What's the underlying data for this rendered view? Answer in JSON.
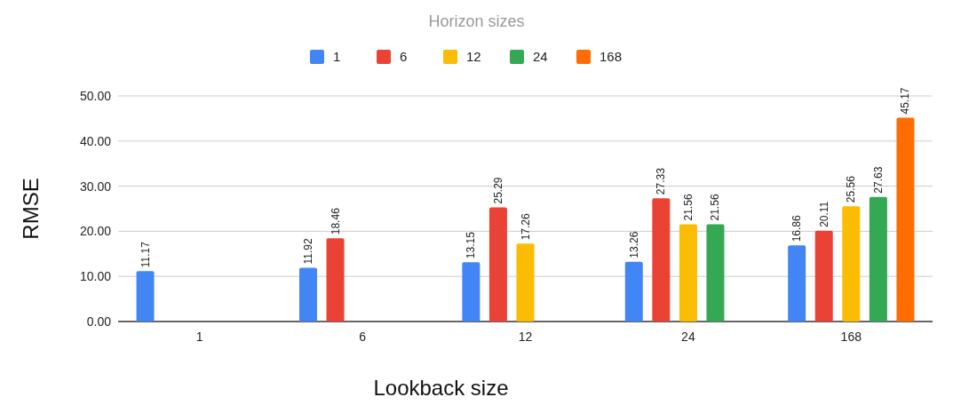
{
  "chart_data": {
    "type": "bar",
    "title": "Horizon sizes",
    "xlabel": "Lookback size",
    "ylabel": "RMSE",
    "categories": [
      "1",
      "6",
      "12",
      "24",
      "168"
    ],
    "series": [
      {
        "name": "1",
        "color": "#4285f4",
        "values": [
          11.17,
          11.92,
          13.15,
          13.26,
          16.86
        ]
      },
      {
        "name": "6",
        "color": "#ea4335",
        "values": [
          null,
          18.46,
          25.29,
          27.33,
          20.11
        ]
      },
      {
        "name": "12",
        "color": "#fbbc04",
        "values": [
          null,
          null,
          17.26,
          21.56,
          25.56
        ]
      },
      {
        "name": "24",
        "color": "#34a853",
        "values": [
          null,
          null,
          null,
          21.56,
          27.63
        ]
      },
      {
        "name": "168",
        "color": "#ff6d01",
        "values": [
          null,
          null,
          null,
          null,
          45.17
        ]
      }
    ],
    "ylim": [
      0,
      50
    ],
    "yticks": [
      {
        "value": 0,
        "label": "0.00"
      },
      {
        "value": 10,
        "label": "10.00"
      },
      {
        "value": 20,
        "label": "20.00"
      },
      {
        "value": 30,
        "label": "30.00"
      },
      {
        "value": 40,
        "label": "40.00"
      },
      {
        "value": 50,
        "label": "50.00"
      }
    ],
    "grid": "y",
    "legend": "top",
    "data_labels": true
  }
}
